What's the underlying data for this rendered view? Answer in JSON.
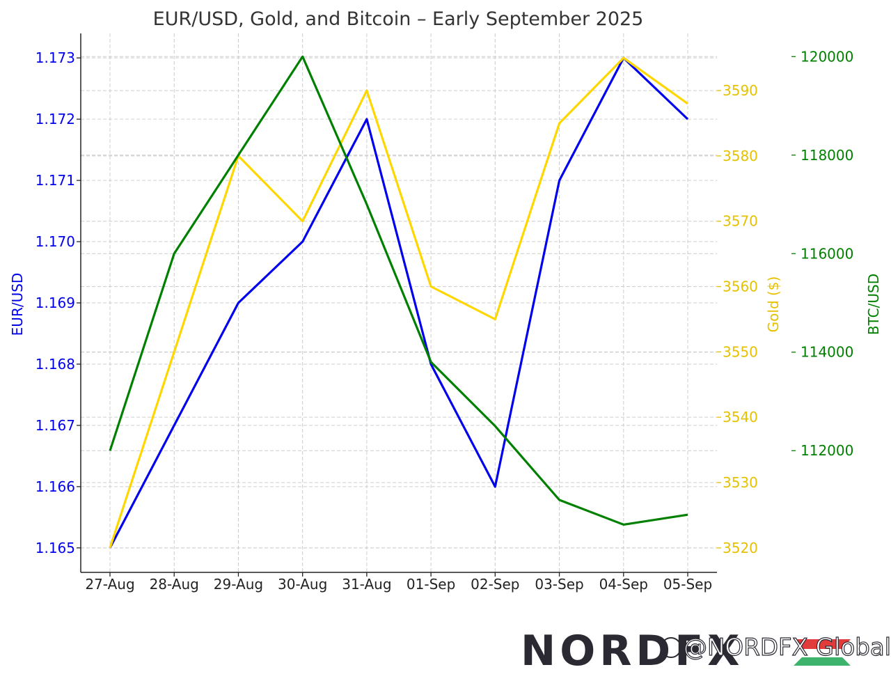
{
  "chart_data": {
    "type": "line",
    "title": "EUR/USD, Gold, and Bitcoin – Early September 2025",
    "categories": [
      "27-Aug",
      "28-Aug",
      "29-Aug",
      "30-Aug",
      "31-Aug",
      "01-Sep",
      "02-Sep",
      "03-Sep",
      "04-Sep",
      "05-Sep"
    ],
    "series": [
      {
        "name": "EUR/USD",
        "axis": "left",
        "color": "#0000ee",
        "values": [
          1.165,
          1.167,
          1.169,
          1.17,
          1.172,
          1.168,
          1.166,
          1.171,
          1.173,
          1.172
        ]
      },
      {
        "name": "Gold ($)",
        "axis": "right1",
        "color": "#ffd700",
        "values": [
          3520,
          3550,
          3580,
          3570,
          3590,
          3560,
          3555,
          3585,
          3595,
          3588
        ]
      },
      {
        "name": "BTC/USD",
        "axis": "right2",
        "color": "#008000",
        "values": [
          112000,
          116000,
          118000,
          120000,
          117000,
          113800,
          112500,
          111000,
          110500,
          110700
        ]
      }
    ],
    "axes": {
      "left": {
        "label": "EUR/USD",
        "color": "#0000ee",
        "range": [
          1.1646,
          1.1734
        ],
        "ticks": [
          "1.165",
          "1.166",
          "1.167",
          "1.168",
          "1.169",
          "1.170",
          "1.171",
          "1.172",
          "1.173"
        ],
        "tick_values": [
          1.165,
          1.166,
          1.167,
          1.168,
          1.169,
          1.17,
          1.171,
          1.172,
          1.173
        ]
      },
      "right1": {
        "label": "Gold ($)",
        "color": "#e5c100",
        "range": [
          3516.25,
          3598.75
        ],
        "ticks": [
          "3520",
          "3530",
          "3540",
          "3550",
          "3560",
          "3570",
          "3580",
          "3590"
        ],
        "tick_values": [
          3520,
          3530,
          3540,
          3550,
          3560,
          3570,
          3580,
          3590
        ]
      },
      "right2": {
        "label": "BTC/USD",
        "color": "#008000",
        "range": [
          109530,
          120470
        ],
        "ticks": [
          "112000",
          "114000",
          "116000",
          "118000",
          "120000"
        ],
        "tick_values": [
          112000,
          114000,
          116000,
          118000,
          120000
        ]
      }
    },
    "grid": true,
    "legend": "none"
  },
  "watermark": {
    "brand": "NORDFX",
    "handle": "@NORDFX Global"
  }
}
